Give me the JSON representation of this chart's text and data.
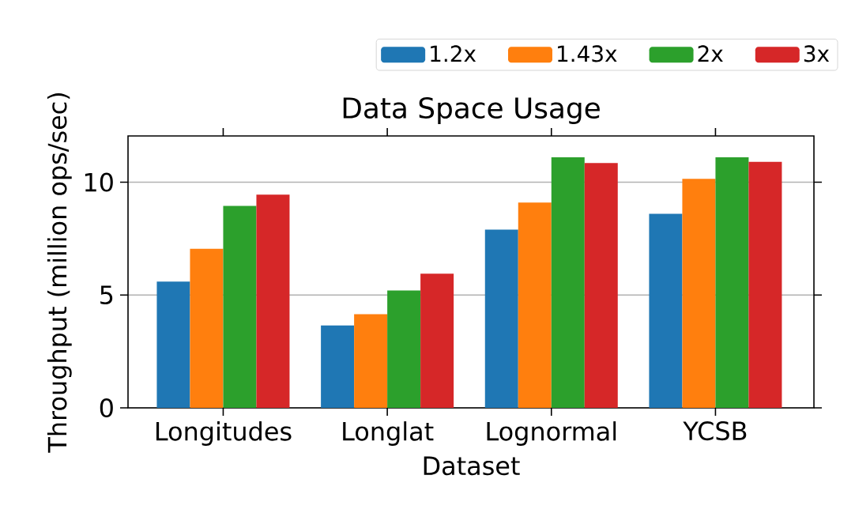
{
  "chart_data": {
    "type": "bar",
    "title": "Data Space Usage",
    "xlabel": "Dataset",
    "ylabel": "Throughput (million ops/sec)",
    "categories": [
      "Longitudes",
      "Longlat",
      "Lognormal",
      "YCSB"
    ],
    "series": [
      {
        "name": "1.2x",
        "color": "#1f77b4",
        "values": [
          5.6,
          3.65,
          7.9,
          8.6
        ]
      },
      {
        "name": "1.43x",
        "color": "#ff7f0e",
        "values": [
          7.05,
          4.15,
          9.1,
          10.15
        ]
      },
      {
        "name": "2x",
        "color": "#2ca02c",
        "values": [
          8.95,
          5.2,
          11.1,
          11.1
        ]
      },
      {
        "name": "3x",
        "color": "#d62728",
        "values": [
          9.45,
          5.95,
          10.85,
          10.9
        ]
      }
    ],
    "ylim": [
      0,
      12.05
    ],
    "yticks": [
      0,
      5,
      10
    ],
    "grid": "y",
    "legend": "top"
  }
}
